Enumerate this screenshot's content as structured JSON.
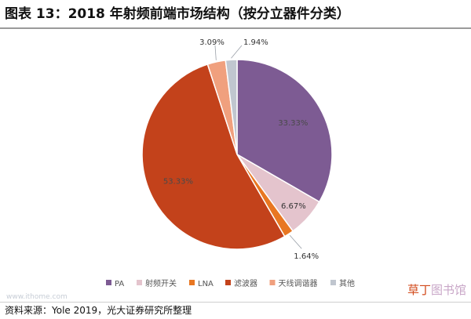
{
  "title": "图表 13：2018 年射频前端市场结构（按分立器件分类）",
  "source": "资料来源：Yole 2019，光大证券研究所整理",
  "watermark": {
    "site_small": "www.ithome.com",
    "brand_accent": "草丁",
    "brand_rest": "图书馆"
  },
  "chart_data": {
    "type": "pie",
    "title": "",
    "categories": [
      "PA",
      "射频开关",
      "LNA",
      "滤波器",
      "天线调谐器",
      "其他"
    ],
    "values": [
      33.33,
      6.67,
      1.64,
      53.33,
      3.09,
      1.94
    ],
    "data_labels": [
      "33.33%",
      "6.67%",
      "1.64%",
      "53.33%",
      "3.09%",
      "1.94%"
    ],
    "colors": [
      "#7d5b93",
      "#e4c4cd",
      "#e87722",
      "#c3421b",
      "#f0a07e",
      "#c0c6cf"
    ],
    "start_angle_deg": 0,
    "direction": "clockwise",
    "legend_position": "bottom"
  }
}
